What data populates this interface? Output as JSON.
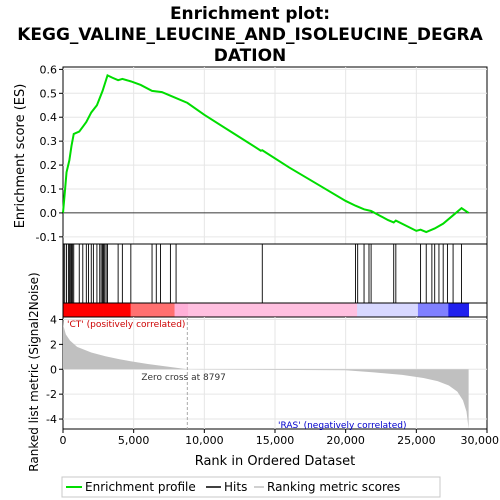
{
  "chart_data": {
    "title_line1": "Enrichment plot:",
    "title_line2": "KEGG_VALINE_LEUCINE_AND_ISOLEUCINE_DEGRA",
    "title_line3": "DATION",
    "type": "line",
    "xlabel": "Rank in Ordered Dataset",
    "ylabel_top": "Enrichment score (ES)",
    "ylabel_bottom": "Ranked list metric (Signal2Noise)",
    "x_ticks": [
      "0",
      "5,000",
      "10,000",
      "15,000",
      "20,000",
      "25,000",
      "30,000"
    ],
    "x_tick_values": [
      0,
      5000,
      10000,
      15000,
      20000,
      25000,
      30000
    ],
    "xlim": [
      0,
      30000
    ],
    "es_y_ticks": [
      "-0.1",
      "0.0",
      "0.1",
      "0.2",
      "0.3",
      "0.4",
      "0.5",
      "0.6"
    ],
    "es_y_tick_values": [
      -0.1,
      0.0,
      0.1,
      0.2,
      0.3,
      0.4,
      0.5,
      0.6
    ],
    "es_ylim": [
      -0.13,
      0.61
    ],
    "metric_y_ticks": [
      "4",
      "2",
      "0",
      "-2",
      "-4"
    ],
    "metric_y_tick_values": [
      4,
      2,
      0,
      -2,
      -4
    ],
    "metric_ylim": [
      -4.8,
      4.2
    ],
    "dataset_size": 28700,
    "zero_cross_rank": 8797,
    "zero_cross_label": "Zero cross at 8797",
    "pos_label": "'CT' (positively correlated)",
    "neg_label": "'RAS' (negatively correlated)",
    "grid": true,
    "legend_position": "bottom",
    "colors": {
      "es_line": "#00dd00",
      "pos_label": "#cc0000",
      "neg_label": "#0000cc",
      "metric_fill": "#c0c0c0",
      "zero_cross_line": "#aaaaaa"
    },
    "hits": [
      30,
      120,
      250,
      380,
      450,
      520,
      600,
      680,
      760,
      1150,
      1400,
      1650,
      1800,
      2000,
      2150,
      2400,
      2600,
      2700,
      2800,
      2870,
      2950,
      3050,
      3150,
      3900,
      4200,
      4800,
      6300,
      6600,
      6900,
      7600,
      8000,
      14100,
      20700,
      20850,
      21300,
      21650,
      21800,
      23400,
      23550,
      25300,
      25700,
      26100,
      26300,
      26600,
      26900,
      27200,
      27600,
      28200
    ],
    "es_profile": [
      [
        0,
        0.0
      ],
      [
        120,
        0.08
      ],
      [
        250,
        0.17
      ],
      [
        450,
        0.22
      ],
      [
        600,
        0.28
      ],
      [
        760,
        0.33
      ],
      [
        1150,
        0.34
      ],
      [
        1400,
        0.36
      ],
      [
        1650,
        0.38
      ],
      [
        2000,
        0.42
      ],
      [
        2400,
        0.45
      ],
      [
        2800,
        0.51
      ],
      [
        3150,
        0.575
      ],
      [
        3500,
        0.565
      ],
      [
        3900,
        0.555
      ],
      [
        4200,
        0.56
      ],
      [
        4800,
        0.55
      ],
      [
        5500,
        0.535
      ],
      [
        6300,
        0.51
      ],
      [
        7000,
        0.505
      ],
      [
        7600,
        0.49
      ],
      [
        8800,
        0.46
      ],
      [
        10000,
        0.41
      ],
      [
        12000,
        0.335
      ],
      [
        14000,
        0.26
      ],
      [
        14100,
        0.262
      ],
      [
        16000,
        0.19
      ],
      [
        18000,
        0.12
      ],
      [
        20000,
        0.05
      ],
      [
        20700,
        0.03
      ],
      [
        21300,
        0.015
      ],
      [
        21800,
        0.008
      ],
      [
        23000,
        -0.03
      ],
      [
        23400,
        -0.04
      ],
      [
        23550,
        -0.032
      ],
      [
        25000,
        -0.075
      ],
      [
        25300,
        -0.07
      ],
      [
        25700,
        -0.08
      ],
      [
        26300,
        -0.065
      ],
      [
        26900,
        -0.045
      ],
      [
        27600,
        -0.01
      ],
      [
        28200,
        0.02
      ],
      [
        28700,
        0.0
      ]
    ],
    "metric_profile": [
      [
        0,
        4.0
      ],
      [
        30,
        3.5
      ],
      [
        200,
        2.8
      ],
      [
        500,
        2.3
      ],
      [
        1000,
        1.8
      ],
      [
        2000,
        1.35
      ],
      [
        3000,
        1.05
      ],
      [
        4000,
        0.8
      ],
      [
        5000,
        0.6
      ],
      [
        6000,
        0.42
      ],
      [
        7000,
        0.27
      ],
      [
        8000,
        0.12
      ],
      [
        8797,
        0.0
      ],
      [
        10000,
        -0.02
      ],
      [
        15000,
        -0.05
      ],
      [
        20000,
        -0.08
      ],
      [
        22000,
        -0.25
      ],
      [
        24000,
        -0.45
      ],
      [
        25500,
        -0.7
      ],
      [
        26500,
        -0.95
      ],
      [
        27300,
        -1.3
      ],
      [
        27900,
        -1.8
      ],
      [
        28300,
        -2.5
      ],
      [
        28550,
        -3.4
      ],
      [
        28700,
        -4.8
      ]
    ],
    "legend_items": [
      "Enrichment profile",
      "Hits",
      "Ranking metric scores"
    ]
  }
}
